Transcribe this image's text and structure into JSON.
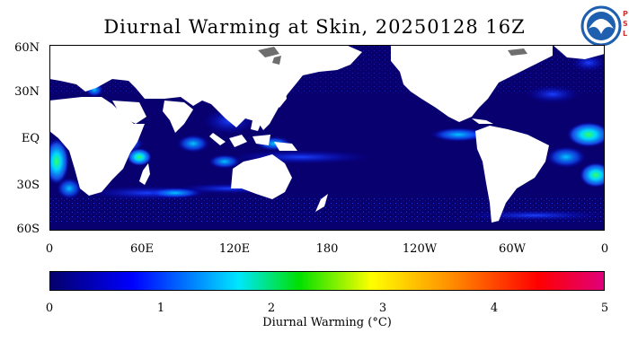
{
  "title": "Diurnal Warming at Skin, 20250128 16Z",
  "logo": {
    "name": "NOAA",
    "sub": "PSL",
    "brand_color": "#1f5fb0"
  },
  "map": {
    "ocean_color": "#08006e",
    "land_color": "#ffffff",
    "ice_color": "#6e6e6e",
    "lat_labels": [
      "60N",
      "30N",
      "EQ",
      "30S",
      "60S"
    ],
    "lon_labels": [
      "0",
      "60E",
      "120E",
      "180",
      "120W",
      "60W",
      "0"
    ]
  },
  "colorbar": {
    "ticks": [
      "0",
      "1",
      "2",
      "3",
      "4",
      "5"
    ],
    "label": "Diurnal Warming (°C)",
    "range": [
      0,
      5
    ],
    "colors": [
      "#04006a",
      "#0000ff",
      "#00e6ff",
      "#00e000",
      "#ffff00",
      "#ff9000",
      "#ff0000",
      "#e0007c"
    ]
  }
}
